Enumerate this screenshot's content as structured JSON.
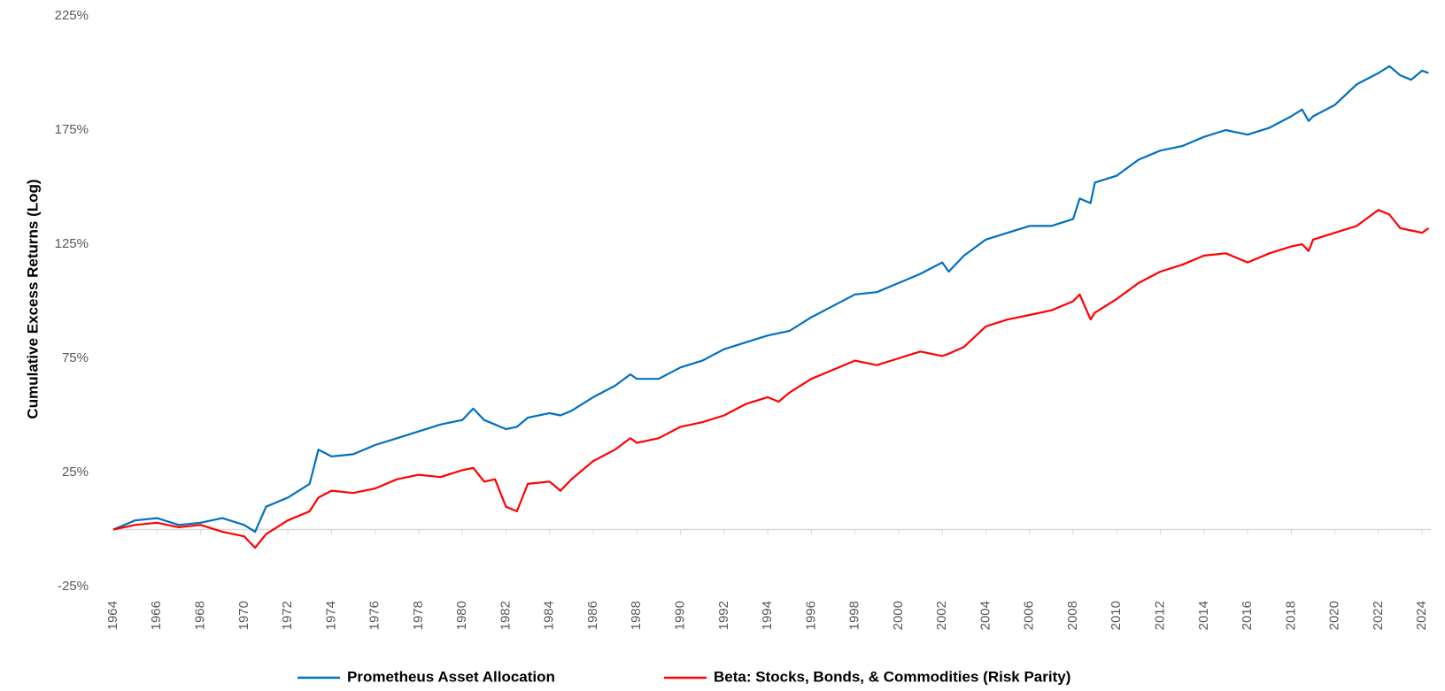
{
  "chart_data": {
    "type": "line",
    "y_label": "Cumulative Excess Returns (Log)",
    "x": [
      1964,
      1965,
      1966,
      1967,
      1968,
      1969,
      1970,
      1970.5,
      1971,
      1972,
      1973,
      1973.4,
      1974,
      1975,
      1976,
      1977,
      1978,
      1979,
      1980,
      1980.5,
      1981,
      1981.5,
      1982,
      1982.5,
      1983,
      1984,
      1984.5,
      1985,
      1986,
      1987,
      1987.7,
      1988,
      1989,
      1990,
      1991,
      1992,
      1993,
      1994,
      1994.5,
      1995,
      1996,
      1997,
      1998,
      1999,
      2000,
      2001,
      2002,
      2002.3,
      2003,
      2004,
      2005,
      2006,
      2007,
      2008,
      2008.3,
      2008.8,
      2009,
      2010,
      2011,
      2012,
      2013,
      2014,
      2015,
      2016,
      2017,
      2018,
      2018.5,
      2018.8,
      2019,
      2020,
      2021,
      2022,
      2022.5,
      2023,
      2023.5,
      2024,
      2024.3
    ],
    "series": [
      {
        "name": "Prometheus Asset Allocation",
        "color": "#0070c0",
        "values": [
          0,
          4,
          5,
          2,
          3,
          5,
          2,
          -1,
          10,
          14,
          20,
          35,
          32,
          33,
          37,
          40,
          43,
          46,
          48,
          53,
          48,
          46,
          44,
          45,
          49,
          51,
          50,
          52,
          58,
          63,
          68,
          66,
          66,
          71,
          74,
          79,
          82,
          85,
          86,
          87,
          93,
          98,
          103,
          104,
          108,
          112,
          117,
          113,
          120,
          127,
          130,
          133,
          133,
          136,
          145,
          143,
          152,
          155,
          162,
          166,
          168,
          172,
          175,
          173,
          176,
          181,
          184,
          179,
          181,
          186,
          195,
          200,
          203,
          199,
          197,
          201,
          200
        ]
      },
      {
        "name": "Beta: Stocks, Bonds, & Commodities (Risk Parity)",
        "color": "#ff0000",
        "values": [
          0,
          2,
          3,
          1,
          2,
          -1,
          -3,
          -8,
          -2,
          4,
          8,
          14,
          17,
          16,
          18,
          22,
          24,
          23,
          26,
          27,
          21,
          22,
          10,
          8,
          20,
          21,
          17,
          22,
          30,
          35,
          40,
          38,
          40,
          45,
          47,
          50,
          55,
          58,
          56,
          60,
          66,
          70,
          74,
          72,
          75,
          78,
          76,
          77,
          80,
          89,
          92,
          94,
          96,
          100,
          103,
          92,
          95,
          101,
          108,
          113,
          116,
          120,
          121,
          117,
          121,
          124,
          125,
          122,
          127,
          130,
          133,
          140,
          138,
          132,
          131,
          130,
          132
        ]
      }
    ],
    "xlim": [
      1964,
      2024.4
    ],
    "xticks": [
      1964,
      1966,
      1968,
      1970,
      1972,
      1974,
      1976,
      1978,
      1980,
      1982,
      1984,
      1986,
      1988,
      1990,
      1992,
      1994,
      1996,
      1998,
      2000,
      2002,
      2004,
      2006,
      2008,
      2010,
      2012,
      2014,
      2016,
      2018,
      2020,
      2022,
      2024
    ],
    "ylim": [
      -25,
      225
    ],
    "yticks": [
      {
        "value": -25,
        "label": "-25%"
      },
      {
        "value": 25,
        "label": "25%"
      },
      {
        "value": 75,
        "label": "75%"
      },
      {
        "value": 125,
        "label": "125%"
      },
      {
        "value": 175,
        "label": "175%"
      },
      {
        "value": 225,
        "label": "225%"
      }
    ],
    "grid": false,
    "legend": "bottom"
  }
}
